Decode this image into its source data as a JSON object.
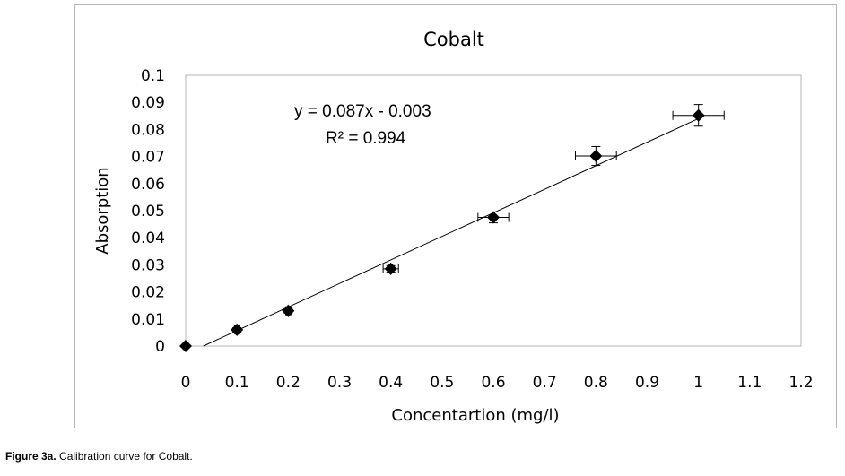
{
  "chart_data": {
    "type": "scatter",
    "title": "Cobalt",
    "xlabel": "Concentartion (mg/l)",
    "ylabel": "Absorption",
    "xlim": [
      0,
      1.2
    ],
    "ylim": [
      0,
      0.1
    ],
    "x_ticks": [
      "0",
      "0.1",
      "0.2",
      "0.3",
      "0.4",
      "0.5",
      "0.6",
      "0.7",
      "0.8",
      "0.9",
      "1",
      "1.1",
      "1.2"
    ],
    "y_ticks": [
      "0",
      "0.01",
      "0.02",
      "0.03",
      "0.04",
      "0.05",
      "0.06",
      "0.07",
      "0.08",
      "0.09",
      "0.1"
    ],
    "grid": false,
    "legend": "none",
    "series": [
      {
        "points": [
          {
            "x": 0,
            "y": 0,
            "xerr": 0,
            "yerr": 0
          },
          {
            "x": 0.1,
            "y": 0.006,
            "xerr": 0.005,
            "yerr": 0.0008
          },
          {
            "x": 0.2,
            "y": 0.013,
            "xerr": 0.005,
            "yerr": 0.0008
          },
          {
            "x": 0.4,
            "y": 0.0285,
            "xerr": 0.015,
            "yerr": 0.0012
          },
          {
            "x": 0.6,
            "y": 0.0475,
            "xerr": 0.03,
            "yerr": 0.002
          },
          {
            "x": 0.8,
            "y": 0.0702,
            "xerr": 0.04,
            "yerr": 0.0035
          },
          {
            "x": 1.0,
            "y": 0.0852,
            "xerr": 0.05,
            "yerr": 0.004
          }
        ],
        "marker_color": "#000000"
      }
    ],
    "trendline": {
      "slope": 0.087,
      "intercept": -0.003,
      "color": "#000000"
    },
    "annotations": {
      "equation": "y = 0.087x - 0.003",
      "r_squared": "R² = 0.994"
    }
  },
  "caption": {
    "label": "Figure 3a.",
    "text": "Calibration curve for Cobalt."
  }
}
